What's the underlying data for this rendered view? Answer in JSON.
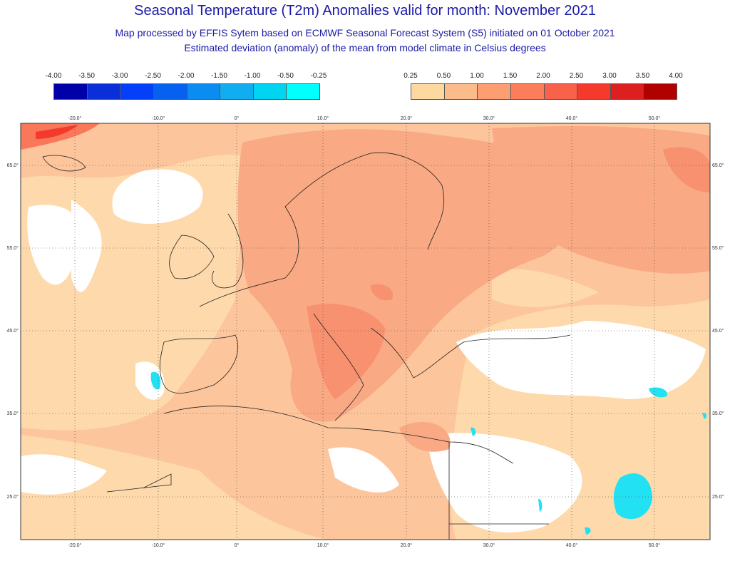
{
  "title": "Seasonal Temperature (T2m) Anomalies valid for month: November 2021",
  "subtitle1": "Map processed by EFFIS Sytem based on ECMWF Seasonal Forecast System (S5) initiated on 01 October 2021",
  "subtitle2": "Estimated deviation (anomaly) of the mean from model climate in Celsius degrees",
  "legend_negative": {
    "labels": [
      "-4.00",
      "-3.50",
      "-3.00",
      "-2.50",
      "-2.00",
      "-1.50",
      "-1.00",
      "-0.50",
      "-0.25"
    ],
    "colors": [
      "#0000a8",
      "#0a2ed8",
      "#0540f8",
      "#0660f0",
      "#0a8cf0",
      "#10aef0",
      "#00d4f0",
      "#00ffff"
    ]
  },
  "legend_positive": {
    "labels": [
      "0.25",
      "0.50",
      "1.00",
      "1.50",
      "2.00",
      "2.50",
      "3.00",
      "3.50",
      "4.00"
    ],
    "colors": [
      "#fdd8a0",
      "#fcbb8a",
      "#fc9d72",
      "#fb7e5a",
      "#f9624a",
      "#f43a2d",
      "#dc1f1f",
      "#b00000"
    ]
  },
  "map": {
    "lon_labels": [
      "-20.0°",
      "-10.0°",
      "0°",
      "10.0°",
      "20.0°",
      "30.0°",
      "40.0°",
      "50.0°"
    ],
    "lat_labels": [
      "65.0°",
      "55.0°",
      "45.0°",
      "35.0°",
      "25.0°"
    ]
  }
}
